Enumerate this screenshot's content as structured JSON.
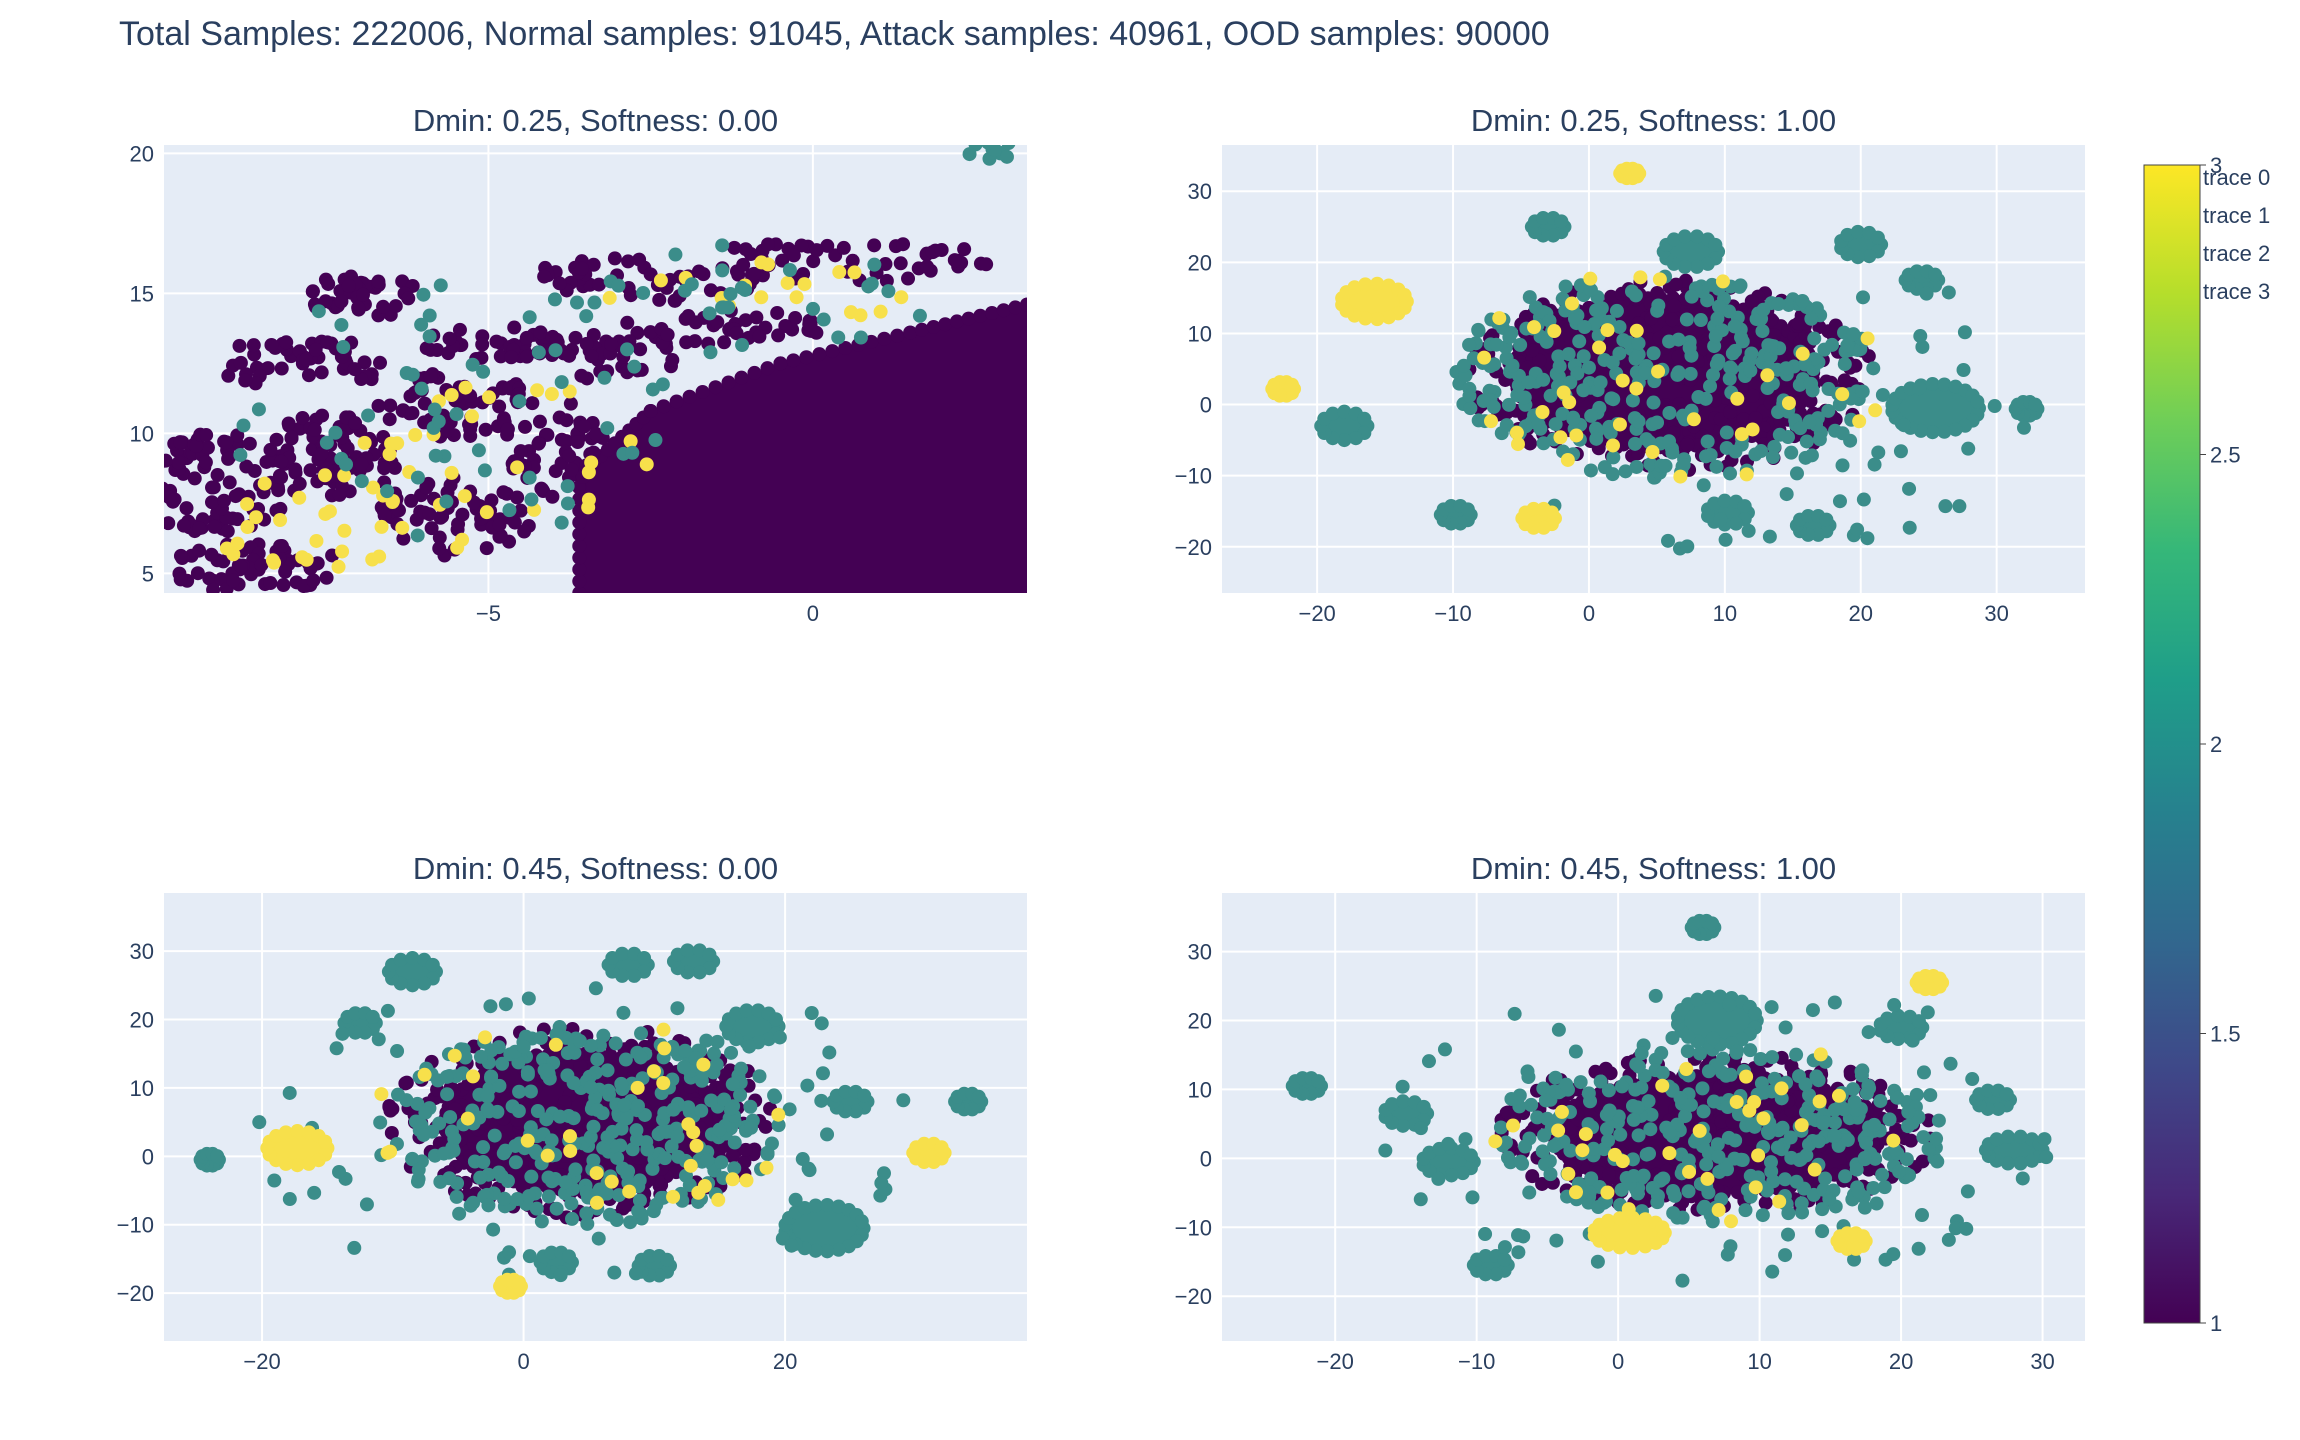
{
  "figure_title": "Total Samples: 222006, Normal samples: 91045, Attack samples: 40961, OOD samples: 90000",
  "colors": {
    "plot_bg": "#E5ECF6",
    "grid": "#ffffff",
    "text": "#2a3f5f",
    "class_1": "#440154",
    "class_2": "#3b8d8a",
    "class_3": "#f7e04b",
    "colorscale": [
      "#440154",
      "#482878",
      "#3e4989",
      "#31688e",
      "#26828e",
      "#1f9e89",
      "#35b779",
      "#6ece58",
      "#b5de2b",
      "#fde725"
    ]
  },
  "legend": {
    "position": "top-right",
    "items": [
      "trace 0",
      "trace 1",
      "trace 2",
      "trace 3"
    ]
  },
  "colorbar": {
    "range": [
      1,
      3
    ],
    "ticks": [
      "1",
      "1.5",
      "2",
      "2.5",
      "3"
    ]
  },
  "chart_data": [
    {
      "type": "scatter",
      "title": "Dmin: 0.25, Softness: 0.00",
      "xlabel": "",
      "ylabel": "",
      "xlim": [
        -10,
        3.3
      ],
      "ylim": [
        4.3,
        20.3
      ],
      "xticks": [
        -5,
        0
      ],
      "yticks": [
        5,
        10,
        15,
        20
      ],
      "grid": true,
      "color_values": [
        1,
        2,
        3
      ],
      "clusters": [
        {
          "class": 1,
          "shape": "poly",
          "pts": [
            [
              -3.6,
              4.3
            ],
            [
              -3.6,
              8.5
            ],
            [
              -2.5,
              10.8
            ],
            [
              -0.5,
              12.5
            ],
            [
              1.5,
              13.6
            ],
            [
              3.3,
              14.6
            ],
            [
              3.3,
              4.3
            ]
          ]
        },
        {
          "class": 1,
          "cx": -6.9,
          "cy": 14.9,
          "rx": 0.9,
          "ry": 0.8,
          "n": 40
        },
        {
          "class": 1,
          "cx": -9.2,
          "cy": 8.2,
          "rx": 1.2,
          "ry": 1.8,
          "n": 90
        },
        {
          "class": 1,
          "cx": -7.4,
          "cy": 9.2,
          "rx": 1.0,
          "ry": 1.6,
          "n": 80
        },
        {
          "class": 1,
          "cx": -8.6,
          "cy": 5.2,
          "rx": 1.4,
          "ry": 0.9,
          "n": 60
        },
        {
          "class": 1,
          "cx": -5.5,
          "cy": 11.0,
          "rx": 1.2,
          "ry": 1.2,
          "n": 60
        },
        {
          "class": 1,
          "cx": -5.5,
          "cy": 7.0,
          "rx": 1.2,
          "ry": 1.5,
          "n": 60
        },
        {
          "class": 1,
          "cx": -4.8,
          "cy": 13.2,
          "rx": 1.4,
          "ry": 0.6,
          "n": 40
        },
        {
          "class": 1,
          "cx": -2.6,
          "cy": 15.5,
          "rx": 1.9,
          "ry": 0.8,
          "n": 50
        },
        {
          "class": 1,
          "cx": 0.6,
          "cy": 16.2,
          "rx": 2.2,
          "ry": 0.8,
          "n": 50
        },
        {
          "class": 1,
          "cx": -4.0,
          "cy": 9.5,
          "rx": 0.8,
          "ry": 1.8,
          "n": 50
        },
        {
          "class": 1,
          "cx": -3.2,
          "cy": 12.8,
          "rx": 1.2,
          "ry": 0.9,
          "n": 40
        },
        {
          "class": 1,
          "cx": -1.4,
          "cy": 13.8,
          "rx": 1.6,
          "ry": 0.6,
          "n": 40
        },
        {
          "class": 1,
          "cx": -7.8,
          "cy": 12.5,
          "rx": 1.5,
          "ry": 0.9,
          "n": 50
        },
        {
          "class": 3,
          "cx": -4.9,
          "cy": 8.8,
          "rx": 2.6,
          "ry": 3.2,
          "n": 30
        },
        {
          "class": 3,
          "cx": -7.6,
          "cy": 7.2,
          "rx": 2.0,
          "ry": 2.2,
          "n": 28
        },
        {
          "class": 3,
          "cx": -0.8,
          "cy": 15.2,
          "rx": 2.6,
          "ry": 1.4,
          "n": 18
        },
        {
          "class": 2,
          "cx": 2.8,
          "cy": 20.1,
          "rx": 0.5,
          "ry": 0.3,
          "n": 10
        },
        {
          "class": 2,
          "cx": -5.6,
          "cy": 10.8,
          "rx": 3.5,
          "ry": 4.6,
          "n": 55
        },
        {
          "class": 2,
          "cx": -1.0,
          "cy": 14.8,
          "rx": 2.8,
          "ry": 2.0,
          "n": 30
        }
      ]
    },
    {
      "type": "scatter",
      "title": "Dmin: 0.25, Softness: 1.00",
      "xlabel": "",
      "ylabel": "",
      "xlim": [
        -27,
        36.5
      ],
      "ylim": [
        -26.5,
        36.5
      ],
      "xticks": [
        -20,
        -10,
        0,
        10,
        20,
        30
      ],
      "yticks": [
        -20,
        -10,
        0,
        10,
        20,
        30
      ],
      "grid": true,
      "color_values": [
        1,
        2,
        3
      ],
      "clusters": [
        {
          "class": 1,
          "cx": 5.5,
          "cy": 4.5,
          "rx": 11.0,
          "ry": 10.5,
          "fill": true
        },
        {
          "class": 1,
          "cx": 6.0,
          "cy": 4.0,
          "rx": 15.0,
          "ry": 13.5,
          "n": 320
        },
        {
          "class": 2,
          "cx": 5.5,
          "cy": 4.0,
          "rx": 15.5,
          "ry": 14.5,
          "n": 320
        },
        {
          "class": 2,
          "cx": 25.5,
          "cy": -0.5,
          "rx": 3.2,
          "ry": 3.4,
          "fill": true
        },
        {
          "class": 2,
          "cx": 7.5,
          "cy": 21.5,
          "rx": 2.0,
          "ry": 2.2,
          "fill": true
        },
        {
          "class": 2,
          "cx": 20.0,
          "cy": 22.5,
          "rx": 1.5,
          "ry": 1.8,
          "fill": true
        },
        {
          "class": 2,
          "cx": -3.0,
          "cy": 25.0,
          "rx": 1.2,
          "ry": 1.3,
          "fill": true
        },
        {
          "class": 2,
          "cx": -18.0,
          "cy": -3.0,
          "rx": 1.7,
          "ry": 2.0,
          "fill": true
        },
        {
          "class": 2,
          "cx": 10.2,
          "cy": -15.2,
          "rx": 1.5,
          "ry": 1.7,
          "fill": true
        },
        {
          "class": 2,
          "cx": 16.5,
          "cy": -17.0,
          "rx": 1.2,
          "ry": 1.4,
          "fill": true
        },
        {
          "class": 2,
          "cx": 24.5,
          "cy": 17.5,
          "rx": 1.2,
          "ry": 1.3,
          "fill": true
        },
        {
          "class": 2,
          "cx": -9.8,
          "cy": -15.5,
          "rx": 1.1,
          "ry": 1.3,
          "fill": true
        },
        {
          "class": 2,
          "cx": 32.2,
          "cy": -0.6,
          "rx": 0.8,
          "ry": 1.0,
          "fill": true
        },
        {
          "class": 2,
          "cx": 12,
          "cy": 0,
          "rx": 22,
          "ry": 21,
          "n": 70
        },
        {
          "class": 3,
          "cx": -15.8,
          "cy": 14.5,
          "rx": 2.4,
          "ry": 2.5,
          "fill": true
        },
        {
          "class": 3,
          "cx": -3.7,
          "cy": -16.0,
          "rx": 1.2,
          "ry": 1.4,
          "fill": true
        },
        {
          "class": 3,
          "cx": 6.0,
          "cy": 4.0,
          "rx": 16.5,
          "ry": 15.0,
          "n": 40
        },
        {
          "class": 3,
          "cx": 3.0,
          "cy": 32.5,
          "rx": 0.7,
          "ry": 0.7,
          "fill": true
        },
        {
          "class": 3,
          "cx": -22.5,
          "cy": 2.2,
          "rx": 0.8,
          "ry": 1.0,
          "fill": true
        }
      ]
    },
    {
      "type": "scatter",
      "title": "Dmin: 0.45, Softness: 0.00",
      "xlabel": "",
      "ylabel": "",
      "xlim": [
        -27.5,
        38.5
      ],
      "ylim": [
        -27,
        38.5
      ],
      "xticks": [
        -20,
        0,
        20
      ],
      "yticks": [
        -20,
        -10,
        0,
        10,
        20,
        30
      ],
      "grid": true,
      "color_values": [
        1,
        2,
        3
      ],
      "clusters": [
        {
          "class": 1,
          "cx": 4.5,
          "cy": 5.0,
          "rx": 10.5,
          "ry": 10.0,
          "fill": true
        },
        {
          "class": 1,
          "cx": 4.5,
          "cy": 5.0,
          "rx": 15.0,
          "ry": 14.0,
          "n": 320
        },
        {
          "class": 2,
          "cx": 4.5,
          "cy": 4.5,
          "rx": 15.5,
          "ry": 14.5,
          "n": 320
        },
        {
          "class": 2,
          "cx": 23.0,
          "cy": -10.5,
          "rx": 3.0,
          "ry": 3.4,
          "fill": true
        },
        {
          "class": 2,
          "cx": 17.5,
          "cy": 19.0,
          "rx": 2.0,
          "ry": 2.4,
          "fill": true
        },
        {
          "class": 2,
          "cx": -8.5,
          "cy": 27.0,
          "rx": 1.8,
          "ry": 2.0,
          "fill": true
        },
        {
          "class": 2,
          "cx": 8.0,
          "cy": 28.0,
          "rx": 1.5,
          "ry": 1.7,
          "fill": true
        },
        {
          "class": 2,
          "cx": 13.0,
          "cy": 28.5,
          "rx": 1.5,
          "ry": 1.7,
          "fill": true
        },
        {
          "class": 2,
          "cx": -12.5,
          "cy": 19.5,
          "rx": 1.2,
          "ry": 1.5,
          "fill": true
        },
        {
          "class": 2,
          "cx": 10.0,
          "cy": -16.0,
          "rx": 1.2,
          "ry": 1.5,
          "fill": true
        },
        {
          "class": 2,
          "cx": 2.5,
          "cy": -15.5,
          "rx": 1.2,
          "ry": 1.5,
          "fill": true
        },
        {
          "class": 2,
          "cx": 34.0,
          "cy": 8.0,
          "rx": 1.0,
          "ry": 1.2,
          "fill": true
        },
        {
          "class": 2,
          "cx": 25.0,
          "cy": 8.0,
          "rx": 1.3,
          "ry": 1.5,
          "fill": true
        },
        {
          "class": 2,
          "cx": -24.0,
          "cy": -0.5,
          "rx": 0.7,
          "ry": 0.9,
          "fill": true
        },
        {
          "class": 2,
          "cx": 5,
          "cy": 3,
          "rx": 26,
          "ry": 24,
          "n": 90
        },
        {
          "class": 3,
          "cx": -17.3,
          "cy": 1.2,
          "rx": 2.3,
          "ry": 2.5,
          "fill": true
        },
        {
          "class": 3,
          "cx": 31.0,
          "cy": 0.5,
          "rx": 1.2,
          "ry": 1.4,
          "fill": true
        },
        {
          "class": 3,
          "cx": -1.0,
          "cy": -19.0,
          "rx": 0.8,
          "ry": 1.0,
          "fill": true
        },
        {
          "class": 3,
          "cx": 4.5,
          "cy": 5.0,
          "rx": 16.0,
          "ry": 15.0,
          "n": 35
        }
      ]
    },
    {
      "type": "scatter",
      "title": "Dmin: 0.45, Softness: 1.00",
      "xlabel": "",
      "ylabel": "",
      "xlim": [
        -28,
        33
      ],
      "ylim": [
        -26.5,
        38.5
      ],
      "xticks": [
        -20,
        -10,
        0,
        10,
        20,
        30
      ],
      "yticks": [
        -20,
        -10,
        0,
        10,
        20,
        30
      ],
      "grid": true,
      "color_values": [
        1,
        2,
        3
      ],
      "clusters": [
        {
          "class": 1,
          "cx": 7.0,
          "cy": 3.5,
          "rx": 11.5,
          "ry": 8.5,
          "fill": true
        },
        {
          "class": 1,
          "cx": 7.0,
          "cy": 3.5,
          "rx": 15.5,
          "ry": 12.0,
          "n": 320
        },
        {
          "class": 2,
          "cx": 7.0,
          "cy": 3.5,
          "rx": 16.0,
          "ry": 12.5,
          "n": 320
        },
        {
          "class": 2,
          "cx": 7.0,
          "cy": 20.0,
          "rx": 2.8,
          "ry": 3.5,
          "fill": true
        },
        {
          "class": 2,
          "cx": 28.0,
          "cy": 1.2,
          "rx": 2.0,
          "ry": 2.0,
          "fill": true
        },
        {
          "class": 2,
          "cx": -15.0,
          "cy": 6.5,
          "rx": 1.5,
          "ry": 1.8,
          "fill": true
        },
        {
          "class": 2,
          "cx": -12.0,
          "cy": -0.5,
          "rx": 1.8,
          "ry": 2.0,
          "fill": true
        },
        {
          "class": 2,
          "cx": 20.0,
          "cy": 19.0,
          "rx": 1.5,
          "ry": 1.7,
          "fill": true
        },
        {
          "class": 2,
          "cx": 26.5,
          "cy": 8.5,
          "rx": 1.2,
          "ry": 1.4,
          "fill": true
        },
        {
          "class": 2,
          "cx": -9.0,
          "cy": -15.5,
          "rx": 1.2,
          "ry": 1.4,
          "fill": true
        },
        {
          "class": 2,
          "cx": 6.0,
          "cy": 33.5,
          "rx": 0.8,
          "ry": 1.0,
          "fill": true
        },
        {
          "class": 2,
          "cx": -22.0,
          "cy": 10.5,
          "rx": 1.0,
          "ry": 1.2,
          "fill": true
        },
        {
          "class": 2,
          "cx": 7,
          "cy": 4,
          "rx": 24,
          "ry": 22,
          "n": 95
        },
        {
          "class": 3,
          "cx": 0.8,
          "cy": -10.8,
          "rx": 2.5,
          "ry": 2.2,
          "fill": true
        },
        {
          "class": 3,
          "cx": 22.0,
          "cy": 25.5,
          "rx": 0.9,
          "ry": 1.0,
          "fill": true
        },
        {
          "class": 3,
          "cx": 16.5,
          "cy": -12.0,
          "rx": 1.0,
          "ry": 1.2,
          "fill": true
        },
        {
          "class": 3,
          "cx": 7.0,
          "cy": 3.5,
          "rx": 16.5,
          "ry": 13.0,
          "n": 35
        }
      ]
    }
  ]
}
